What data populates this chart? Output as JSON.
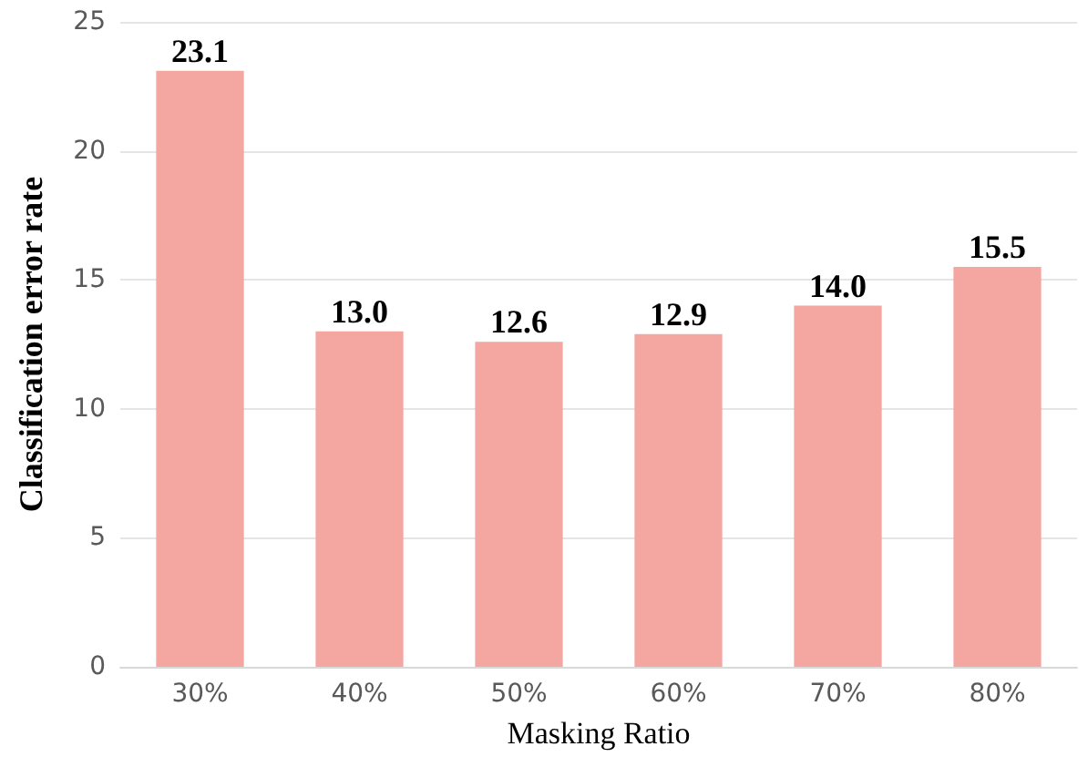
{
  "chart_data": {
    "type": "bar",
    "xlabel": "Masking Ratio",
    "ylabel": "Classification error rate",
    "categories": [
      "30%",
      "40%",
      "50%",
      "60%",
      "70%",
      "80%"
    ],
    "values": [
      23.1,
      13.0,
      12.6,
      12.9,
      14.0,
      15.5
    ],
    "value_labels": [
      "23.1",
      "13.0",
      "12.6",
      "12.9",
      "14.0",
      "15.5"
    ],
    "color": "#f4a6a0",
    "ylim": [
      0,
      25
    ],
    "yticks": [
      0,
      5,
      10,
      15,
      20,
      25
    ],
    "grid": "y"
  }
}
